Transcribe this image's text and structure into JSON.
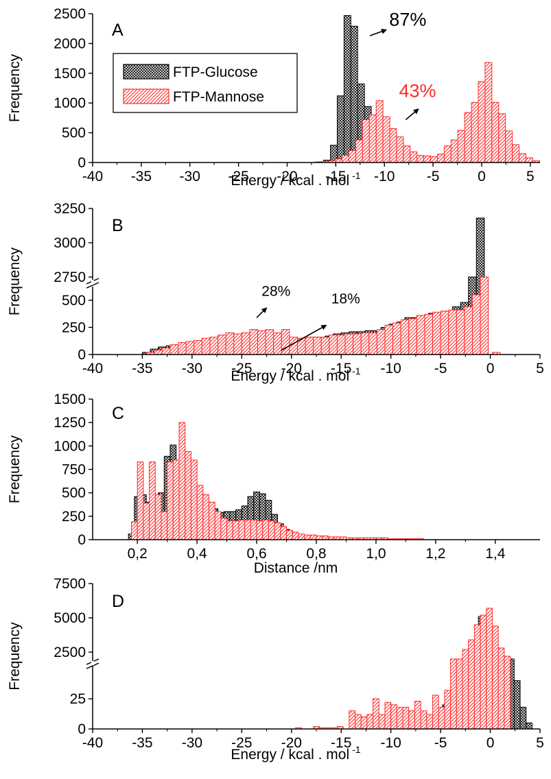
{
  "legend": {
    "glucose": "FTP-Glucose",
    "mannose": "FTP-Mannose"
  },
  "colors": {
    "glucose": "#000000",
    "mannose": "#ff2a2a",
    "axis": "#000000"
  },
  "chart_data": [
    {
      "panel": "A",
      "type": "bar",
      "xlabel": "Energy / kcal . mol",
      "xlabel_sup": "-1",
      "ylabel": "Frequency",
      "xlim": [
        -40,
        6
      ],
      "ylim": [
        0,
        2500
      ],
      "yticks": [
        0,
        500,
        1000,
        1500,
        2000,
        2500
      ],
      "ytick_labels": [
        "0",
        "500",
        "1000",
        "1500",
        "2000",
        "2500"
      ],
      "xticks": [
        -40,
        -35,
        -30,
        -25,
        -20,
        -15,
        -10,
        -5,
        0,
        5
      ],
      "xtick_labels": [
        "-40",
        "-35",
        "-30",
        "-25",
        "-20",
        "-15",
        "-10",
        "-5",
        "0",
        "5"
      ],
      "bin_width": 0.7,
      "legend": {
        "position": "top-left",
        "entries": [
          "FTP-Glucose",
          "FTP-Mannose"
        ]
      },
      "annotations": [
        {
          "text": "87%",
          "color": "#000000",
          "x": -9.5,
          "y": 2300,
          "arrow_from": [
            -11.5,
            2130
          ],
          "arrow_to": [
            -9.8,
            2230
          ]
        },
        {
          "text": "43%",
          "color": "#ff2a2a",
          "x": -8.5,
          "y": 1100,
          "arrow_from": [
            -7.8,
            720
          ],
          "arrow_to": [
            -6.5,
            900
          ]
        }
      ],
      "series": [
        {
          "name": "FTP-Glucose",
          "x": [
            -16.6,
            -15.9,
            -15.2,
            -14.5,
            -13.8,
            -13.1,
            -12.4,
            -11.7,
            -11.0,
            -10.3,
            -9.6,
            -8.9,
            -8.2,
            -7.5,
            -6.8,
            -6.1,
            -5.4,
            -4.7,
            -4.0,
            -3.3,
            -2.6,
            -1.9,
            -1.2,
            -0.5,
            0.2,
            0.9,
            1.6,
            2.3
          ],
          "values": [
            10,
            40,
            290,
            1120,
            2470,
            2290,
            1320,
            940,
            610,
            300,
            160,
            110,
            80,
            60,
            50,
            40,
            60,
            90,
            140,
            200,
            240,
            260,
            240,
            200,
            140,
            90,
            60,
            30
          ]
        },
        {
          "name": "FTP-Mannose",
          "x": [
            -17.5,
            -16.8,
            -16.1,
            -15.4,
            -14.7,
            -14.0,
            -13.3,
            -12.6,
            -11.9,
            -11.2,
            -10.5,
            -9.8,
            -9.1,
            -8.4,
            -7.7,
            -7.0,
            -6.3,
            -5.6,
            -4.9,
            -4.2,
            -3.5,
            -2.8,
            -2.1,
            -1.4,
            -0.7,
            0.0,
            0.7,
            1.4,
            2.1,
            2.8,
            3.5,
            4.2,
            4.9,
            5.6
          ],
          "values": [
            5,
            10,
            20,
            30,
            60,
            120,
            200,
            380,
            720,
            800,
            1040,
            770,
            570,
            430,
            280,
            180,
            120,
            110,
            100,
            140,
            280,
            380,
            540,
            840,
            1010,
            1360,
            1680,
            1010,
            820,
            530,
            300,
            150,
            80,
            30
          ]
        }
      ]
    },
    {
      "panel": "B",
      "type": "bar",
      "xlabel": "Energy / kcal . mol",
      "xlabel_sup": "-1",
      "ylabel": "Frequency",
      "xlim": [
        -40,
        5
      ],
      "yaxis_break": true,
      "ylim_lower": [
        0,
        600
      ],
      "ylim_upper": [
        2750,
        3250
      ],
      "yticks": [
        0,
        250,
        500,
        2750,
        3000,
        3250
      ],
      "ytick_labels": [
        "0",
        "250",
        "500",
        "2750",
        "3000",
        "3250"
      ],
      "xticks": [
        -40,
        -35,
        -30,
        -25,
        -20,
        -15,
        -10,
        -5,
        0,
        5
      ],
      "xtick_labels": [
        "-40",
        "-35",
        "-30",
        "-25",
        "-20",
        "-15",
        "-10",
        "-5",
        "0",
        "5"
      ],
      "bin_width": 0.8,
      "annotations": [
        {
          "text": "28%",
          "color": "#000000",
          "x": -23,
          "y": 540,
          "arrow_from": [
            -23.5,
            340
          ],
          "arrow_to": [
            -22.5,
            430
          ]
        },
        {
          "text": "18%",
          "color": "#000000",
          "x": -16,
          "y": 470,
          "arrow_from": [
            -21,
            40
          ],
          "arrow_to": [
            -16.5,
            270
          ]
        }
      ],
      "series": [
        {
          "name": "FTP-Glucose",
          "x": [
            -34.6,
            -33.8,
            -33.0,
            -32.2,
            -31.4,
            -30.6,
            -29.8,
            -29.0,
            -28.2,
            -27.4,
            -26.6,
            -25.8,
            -25.0,
            -24.2,
            -23.4,
            -22.6,
            -21.8,
            -21.0,
            -20.2,
            -19.4,
            -18.6,
            -17.8,
            -17.0,
            -16.2,
            -15.4,
            -14.6,
            -13.8,
            -13.0,
            -12.2,
            -11.4,
            -10.6,
            -9.8,
            -9.0,
            -8.2,
            -7.4,
            -6.6,
            -5.8,
            -5.0,
            -4.2,
            -3.4,
            -2.6,
            -1.8,
            -1.0
          ],
          "values": [
            20,
            50,
            70,
            80,
            90,
            100,
            110,
            120,
            110,
            120,
            100,
            110,
            110,
            120,
            120,
            110,
            120,
            130,
            120,
            130,
            150,
            160,
            160,
            170,
            190,
            200,
            210,
            210,
            220,
            220,
            250,
            280,
            300,
            340,
            340,
            360,
            380,
            380,
            400,
            440,
            480,
            610,
            3180
          ]
        },
        {
          "name": "FTP-Mannose",
          "x": [
            -34.2,
            -33.4,
            -32.6,
            -31.8,
            -31.0,
            -30.2,
            -29.4,
            -28.6,
            -27.8,
            -27.0,
            -26.2,
            -25.4,
            -24.6,
            -23.8,
            -23.0,
            -22.2,
            -21.4,
            -20.6,
            -19.8,
            -19.0,
            -18.2,
            -17.4,
            -16.6,
            -15.8,
            -15.0,
            -14.2,
            -13.4,
            -12.6,
            -11.8,
            -11.0,
            -10.2,
            -9.4,
            -8.6,
            -7.8,
            -7.0,
            -6.2,
            -5.4,
            -4.6,
            -3.8,
            -3.0,
            -2.2,
            -1.4,
            -0.6,
            0.6
          ],
          "values": [
            20,
            40,
            60,
            90,
            110,
            120,
            130,
            150,
            160,
            180,
            200,
            190,
            200,
            230,
            220,
            230,
            200,
            230,
            160,
            150,
            160,
            160,
            160,
            180,
            180,
            190,
            190,
            200,
            200,
            230,
            270,
            290,
            320,
            330,
            360,
            370,
            390,
            400,
            410,
            410,
            440,
            550,
            620,
            20
          ]
        }
      ]
    },
    {
      "panel": "C",
      "type": "bar",
      "xlabel": "Distance /nm",
      "ylabel": "Frequency",
      "xlim": [
        0.05,
        1.55
      ],
      "ylim": [
        0,
        1500
      ],
      "yticks": [
        0,
        250,
        500,
        750,
        1000,
        1250,
        1500
      ],
      "ytick_labels": [
        "0",
        "250",
        "500",
        "750",
        "1000",
        "1250",
        "1500"
      ],
      "xticks": [
        0.2,
        0.4,
        0.6,
        0.8,
        1.0,
        1.2,
        1.4
      ],
      "xtick_labels": [
        "0,2",
        "0,4",
        "0,6",
        "0,8",
        "1,0",
        "1,2",
        "1,4"
      ],
      "bin_width": 0.02,
      "series": [
        {
          "name": "FTP-Glucose",
          "x": [
            0.18,
            0.2,
            0.22,
            0.24,
            0.26,
            0.28,
            0.3,
            0.32,
            0.34,
            0.36,
            0.38,
            0.4,
            0.42,
            0.44,
            0.46,
            0.48,
            0.5,
            0.52,
            0.54,
            0.56,
            0.58,
            0.6,
            0.62,
            0.64,
            0.66,
            0.68,
            0.7,
            0.72,
            0.74,
            0.76,
            0.78,
            0.8,
            0.82,
            0.84,
            0.86
          ],
          "values": [
            60,
            460,
            480,
            400,
            390,
            500,
            890,
            1010,
            840,
            790,
            690,
            510,
            440,
            390,
            330,
            290,
            300,
            300,
            320,
            360,
            460,
            510,
            490,
            420,
            270,
            170,
            110,
            80,
            50,
            30,
            20,
            20,
            10,
            10,
            10
          ]
        },
        {
          "name": "FTP-Mannose",
          "x": [
            0.19,
            0.21,
            0.23,
            0.25,
            0.27,
            0.29,
            0.31,
            0.33,
            0.35,
            0.37,
            0.39,
            0.41,
            0.43,
            0.45,
            0.47,
            0.49,
            0.51,
            0.53,
            0.55,
            0.57,
            0.59,
            0.61,
            0.63,
            0.65,
            0.67,
            0.69,
            0.71,
            0.73,
            0.75,
            0.77,
            0.79,
            0.81,
            0.83,
            0.85,
            0.87,
            0.89,
            0.91,
            0.93,
            0.95,
            0.97,
            0.99,
            1.01,
            1.03,
            1.05,
            1.07,
            1.09,
            1.11,
            1.13,
            1.15
          ],
          "values": [
            190,
            830,
            390,
            830,
            480,
            300,
            830,
            850,
            1250,
            940,
            850,
            580,
            480,
            400,
            300,
            230,
            200,
            200,
            210,
            210,
            210,
            200,
            210,
            200,
            180,
            140,
            100,
            80,
            60,
            50,
            50,
            40,
            40,
            30,
            30,
            30,
            20,
            20,
            20,
            20,
            20,
            20,
            20,
            10,
            10,
            10,
            10,
            10,
            10
          ]
        }
      ]
    },
    {
      "panel": "D",
      "type": "bar",
      "xlabel": "Energy / kcal . mol",
      "xlabel_sup": "-1",
      "ylabel": "Frequency",
      "xlim": [
        -40,
        5
      ],
      "yaxis_break": true,
      "ylim_lower": [
        0,
        50
      ],
      "ylim_upper": [
        2000,
        7500
      ],
      "yticks": [
        0,
        25,
        2500,
        5000,
        7500
      ],
      "ytick_labels": [
        "0",
        "25",
        "2500",
        "5000",
        "7500"
      ],
      "xticks": [
        -40,
        -35,
        -30,
        -25,
        -20,
        -15,
        -10,
        -5,
        0,
        5
      ],
      "xtick_labels": [
        "-40",
        "-35",
        "-30",
        "-25",
        "-20",
        "-15",
        "-10",
        "-5",
        "0",
        "5"
      ],
      "bin_width": 0.6,
      "series": [
        {
          "name": "FTP-Glucose",
          "x": [
            -8.1,
            -7.5,
            -6.9,
            -6.3,
            -5.7,
            -5.1,
            -4.5,
            -3.9,
            -3.3,
            -2.7,
            -2.1,
            -1.5,
            -0.9,
            -0.3,
            0.3,
            0.9,
            1.5,
            2.1,
            2.7,
            3.3,
            3.9
          ],
          "values": [
            2,
            0,
            3,
            5,
            7,
            10,
            20,
            25,
            38,
            60,
            600,
            1400,
            5100,
            4600,
            3500,
            2500,
            1500,
            800,
            40,
            18,
            5
          ]
        },
        {
          "name": "FTP-Mannose",
          "x": [
            -19.3,
            -17.5,
            -16.9,
            -16.3,
            -15.7,
            -15.1,
            -13.9,
            -13.3,
            -12.7,
            -12.1,
            -11.5,
            -10.9,
            -10.3,
            -9.7,
            -9.1,
            -8.5,
            -7.9,
            -7.3,
            -6.7,
            -6.1,
            -5.5,
            -4.9,
            -4.3,
            -3.7,
            -3.1,
            -2.5,
            -1.9,
            -1.3,
            -0.7,
            -0.1,
            0.5,
            1.1,
            1.7
          ],
          "values": [
            1,
            2,
            1,
            1,
            1,
            2,
            15,
            12,
            10,
            12,
            25,
            12,
            22,
            20,
            18,
            18,
            15,
            23,
            15,
            12,
            28,
            18,
            32,
            400,
            1800,
            2700,
            3400,
            4500,
            5200,
            5700,
            4400,
            2800,
            2200
          ]
        }
      ]
    }
  ]
}
